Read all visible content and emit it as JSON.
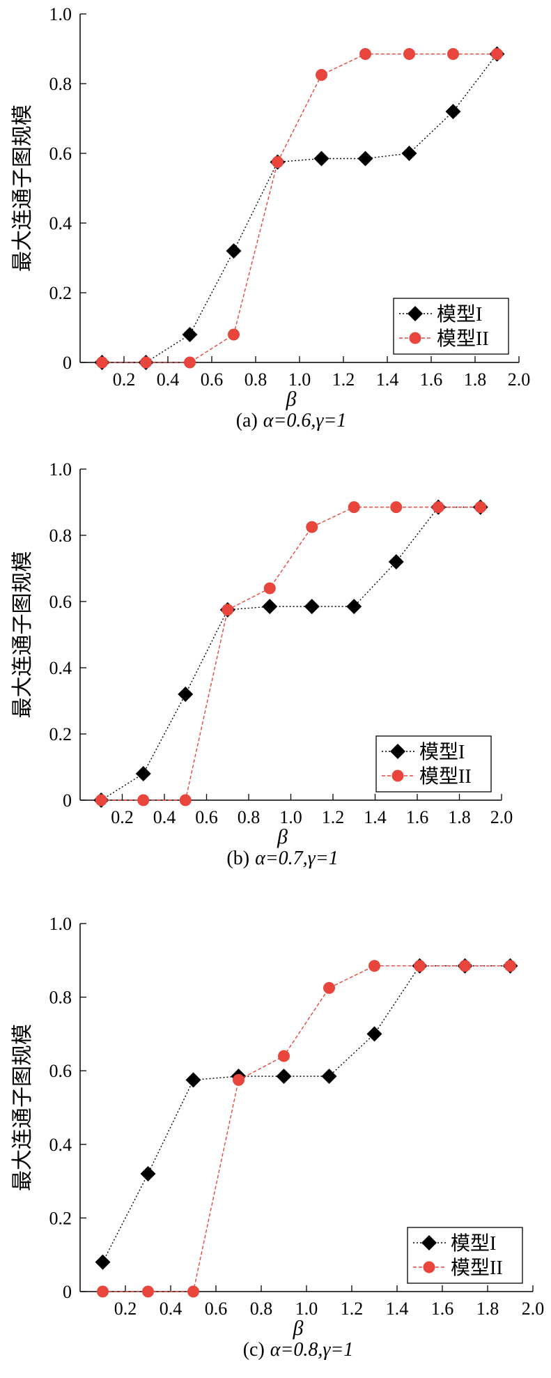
{
  "chart_data": [
    {
      "type": "line",
      "panel_label": "(a)",
      "caption_params": "α=0.6,γ=1",
      "xlabel": "β",
      "ylabel": "最大连通子图规模",
      "xlim": [
        0,
        2.0
      ],
      "ylim": [
        0,
        1.0
      ],
      "xticks": [
        "0.2",
        "0.4",
        "0.6",
        "0.8",
        "1.0",
        "1.2",
        "1.4",
        "1.6",
        "1.8",
        "2.0"
      ],
      "yticks": [
        "0",
        "0.2",
        "0.4",
        "0.6",
        "0.8",
        "1.0"
      ],
      "legend_position": "lower-right",
      "grid": false,
      "series": [
        {
          "name": "模型I",
          "color": "#000000",
          "marker": "diamond",
          "x": [
            0.1,
            0.3,
            0.5,
            0.7,
            0.9,
            1.1,
            1.3,
            1.5,
            1.7,
            1.9
          ],
          "y": [
            0,
            0,
            0.08,
            0.32,
            0.575,
            0.585,
            0.585,
            0.6,
            0.72,
            0.885
          ]
        },
        {
          "name": "模型II",
          "color": "#e8453c",
          "marker": "circle",
          "x": [
            0.1,
            0.3,
            0.5,
            0.7,
            0.9,
            1.1,
            1.3,
            1.5,
            1.7,
            1.9
          ],
          "y": [
            0,
            0,
            0,
            0.08,
            0.575,
            0.825,
            0.885,
            0.885,
            0.885,
            0.885
          ]
        }
      ]
    },
    {
      "type": "line",
      "panel_label": "(b)",
      "caption_params": "α=0.7,γ=1",
      "xlabel": "β",
      "ylabel": "最大连通子图规模",
      "xlim": [
        0,
        2.0
      ],
      "ylim": [
        0,
        1.0
      ],
      "xticks": [
        "0.2",
        "0.4",
        "0.6",
        "0.8",
        "1.0",
        "1.2",
        "1.4",
        "1.6",
        "1.8",
        "2.0"
      ],
      "yticks": [
        "0",
        "0.2",
        "0.4",
        "0.6",
        "0.8",
        "1.0"
      ],
      "legend_position": "lower-right",
      "grid": false,
      "series": [
        {
          "name": "模型I",
          "color": "#000000",
          "marker": "diamond",
          "x": [
            0.1,
            0.3,
            0.5,
            0.7,
            0.9,
            1.1,
            1.3,
            1.5,
            1.7,
            1.9
          ],
          "y": [
            0,
            0.08,
            0.32,
            0.575,
            0.585,
            0.585,
            0.585,
            0.72,
            0.885,
            0.885
          ]
        },
        {
          "name": "模型II",
          "color": "#e8453c",
          "marker": "circle",
          "x": [
            0.1,
            0.3,
            0.5,
            0.7,
            0.9,
            1.1,
            1.3,
            1.5,
            1.7,
            1.9
          ],
          "y": [
            0,
            0,
            0,
            0.575,
            0.64,
            0.825,
            0.885,
            0.885,
            0.885,
            0.885
          ]
        }
      ]
    },
    {
      "type": "line",
      "panel_label": "(c)",
      "caption_params": "α=0.8,γ=1",
      "xlabel": "β",
      "ylabel": "最大连通子图规模",
      "xlim": [
        0,
        2.0
      ],
      "ylim": [
        0,
        1.0
      ],
      "xticks": [
        "0.2",
        "0.4",
        "0.6",
        "0.8",
        "1.0",
        "1.2",
        "1.4",
        "1.6",
        "1.8",
        "2.0"
      ],
      "yticks": [
        "0",
        "0.2",
        "0.4",
        "0.6",
        "0.8",
        "1.0"
      ],
      "legend_position": "lower-right",
      "grid": false,
      "series": [
        {
          "name": "模型I",
          "color": "#000000",
          "marker": "diamond",
          "x": [
            0.1,
            0.3,
            0.5,
            0.7,
            0.9,
            1.1,
            1.3,
            1.5,
            1.7,
            1.9
          ],
          "y": [
            0.08,
            0.32,
            0.575,
            0.585,
            0.585,
            0.585,
            0.7,
            0.885,
            0.885,
            0.885
          ]
        },
        {
          "name": "模型II",
          "color": "#e8453c",
          "marker": "circle",
          "x": [
            0.1,
            0.3,
            0.5,
            0.7,
            0.9,
            1.1,
            1.3,
            1.5,
            1.7,
            1.9
          ],
          "y": [
            0,
            0,
            0,
            0.575,
            0.64,
            0.825,
            0.885,
            0.885,
            0.885,
            0.885
          ]
        }
      ]
    }
  ]
}
